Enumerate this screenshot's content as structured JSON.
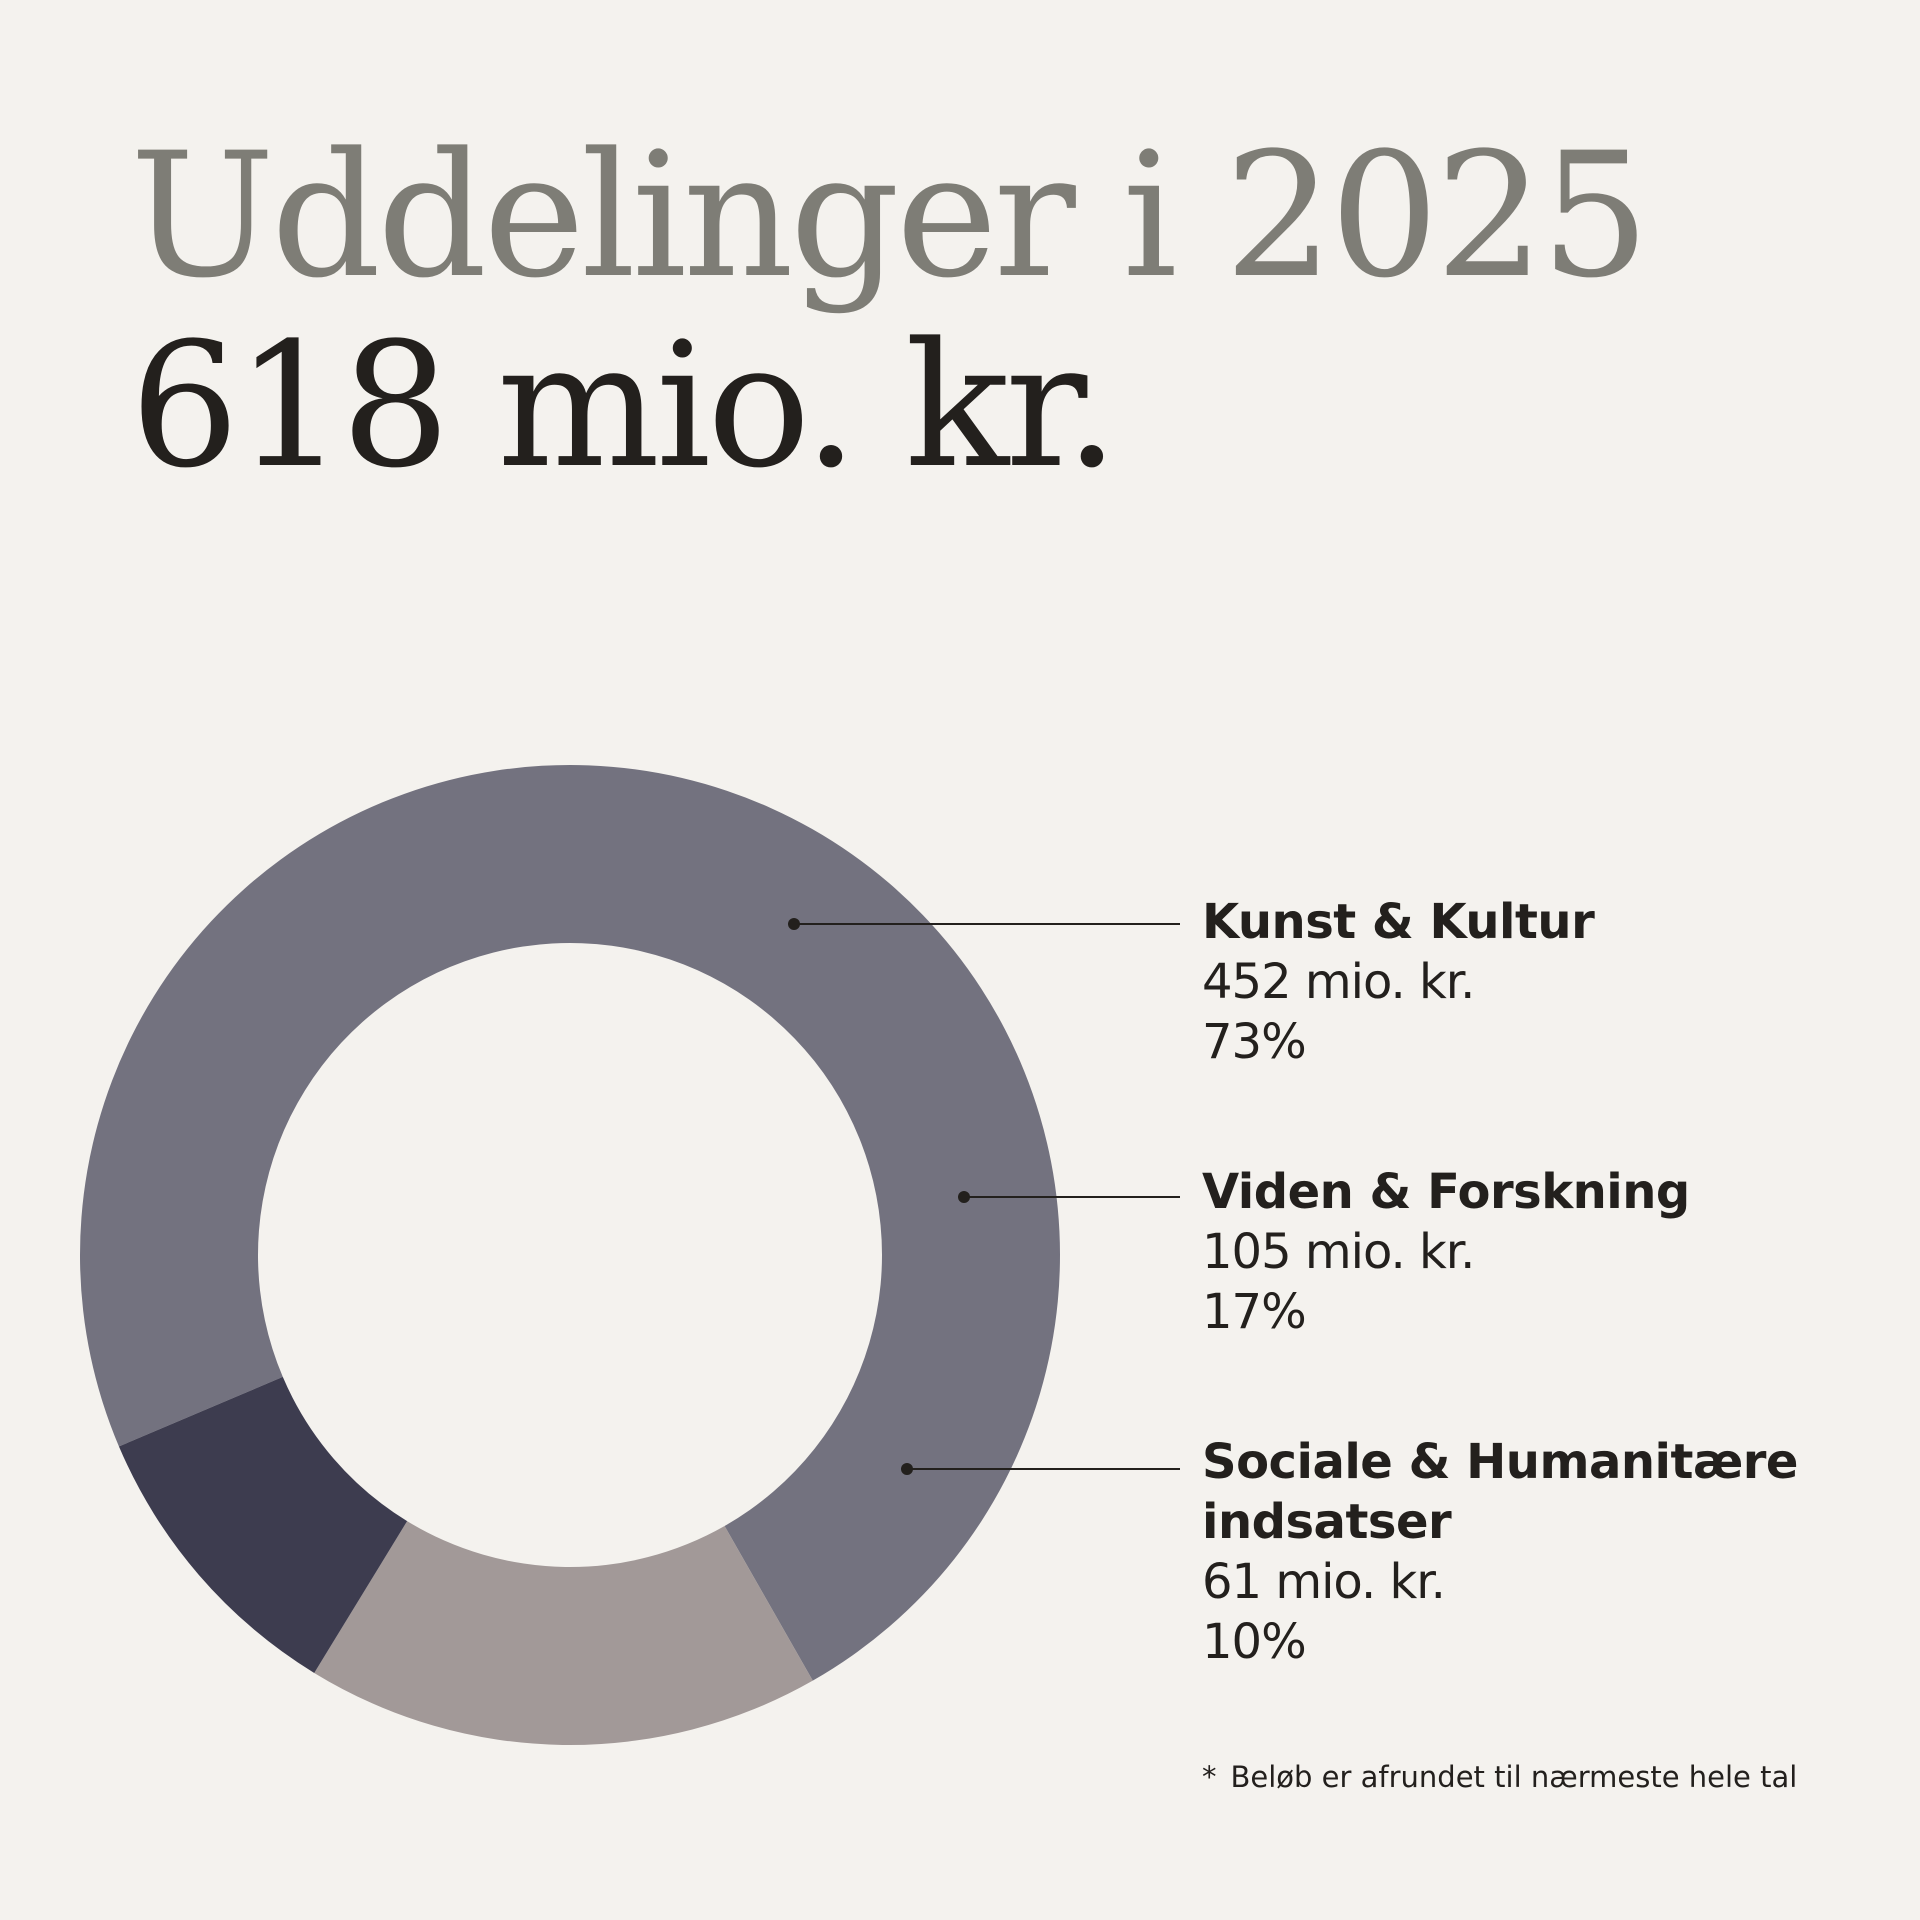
{
  "header": {
    "title": "Uddelinger i 2025",
    "total": "618 mio. kr."
  },
  "chart_data": {
    "type": "pie",
    "variant": "donut",
    "title": "Uddelinger i 2025",
    "subtitle": "618 mio. kr.",
    "unit": "mio. kr.",
    "total": 618,
    "series": [
      {
        "name": "Kunst & Kultur",
        "value": 452,
        "value_label": "452 mio. kr.",
        "percent": 73,
        "percent_label": "73%",
        "color": "#73727f"
      },
      {
        "name": "Viden & Forskning",
        "value": 105,
        "value_label": "105 mio. kr.",
        "percent": 17,
        "percent_label": "17%",
        "color": "#a29998"
      },
      {
        "name": "Sociale & Humanitære indsatser",
        "value": 61,
        "value_label": "61 mio. kr.",
        "percent": 10,
        "percent_label": "10%",
        "color": "#3d3c4f"
      }
    ],
    "legend_placement": "right"
  },
  "footnote": {
    "marker": "*",
    "text": "Beløb er afrundet til nærmeste hele tal"
  },
  "colors": {
    "background": "#f4f2ee",
    "title": "#7e7d76",
    "text": "#23201d"
  }
}
